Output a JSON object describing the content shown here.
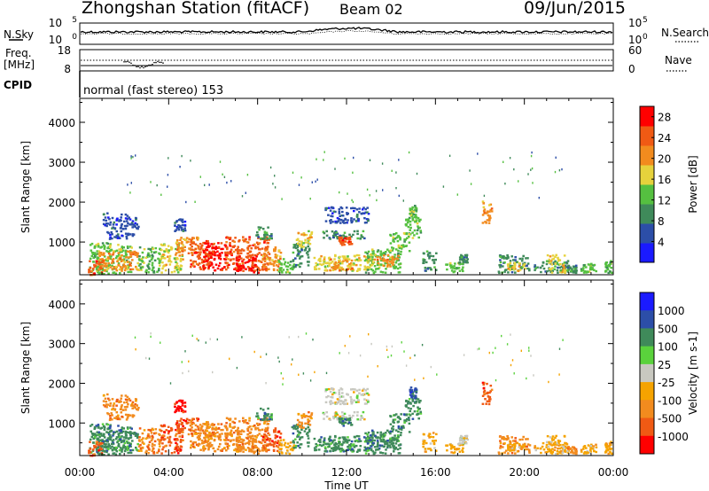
{
  "header": {
    "title": "Zhongshan Station (fitACF)",
    "beam": "Beam 02",
    "date": "09/Jun/2015"
  },
  "summary_panels": {
    "nsky_label": "N.Sky",
    "nsky_top": "10^5",
    "nsky_bottom": "10^0",
    "nsearch_label": "N.Search",
    "nsearch_top": "10^5",
    "nsearch_bottom": "10^0",
    "freq_label": "Freq.",
    "freq_unit": "[MHz]",
    "freq_top": "18",
    "freq_bottom": "8",
    "nave_label": "Nave",
    "nave_top": "60",
    "nave_bottom": "0",
    "cpid_label": "CPID",
    "cpid_text": "normal (fast stereo) 153"
  },
  "colors": {
    "power": [
      "#1a1aff",
      "#2c4ea8",
      "#3f8a5a",
      "#55c040",
      "#e6d23c",
      "#f28b1e",
      "#f05a14",
      "#ff0000"
    ],
    "velocity": [
      "#ff0000",
      "#f05a14",
      "#f28b1e",
      "#f5a300",
      "#c8c8c0",
      "#5ad23c",
      "#3f8a5a",
      "#2c4ea8",
      "#1a1aff"
    ]
  },
  "chart_data": [
    {
      "type": "heatmap",
      "name": "power",
      "ylabel": "Slant Range [km]",
      "xlim": [
        "00:00",
        "24:00"
      ],
      "ylim": [
        180,
        4600
      ],
      "x_ticks": [
        "00:00",
        "04:00",
        "08:00",
        "12:00",
        "16:00",
        "20:00",
        "00:00"
      ],
      "y_ticks": [
        "1000",
        "2000",
        "3000",
        "4000"
      ],
      "colorbar": {
        "label": "Power [dB]",
        "ticks": [
          "4",
          "8",
          "12",
          "16",
          "20",
          "24",
          "28"
        ],
        "range": [
          0,
          30
        ]
      }
    },
    {
      "type": "heatmap",
      "name": "velocity",
      "ylabel": "Slant Range [km]",
      "xlabel": "Time UT",
      "xlim": [
        "00:00",
        "24:00"
      ],
      "ylim": [
        180,
        4600
      ],
      "x_ticks": [
        "00:00",
        "04:00",
        "08:00",
        "12:00",
        "16:00",
        "20:00",
        "00:00"
      ],
      "y_ticks": [
        "1000",
        "2000",
        "3000",
        "4000"
      ],
      "colorbar": {
        "label": "Velocity [m s-1]",
        "ticks": [
          "1000",
          "500",
          "100",
          "25",
          "-25",
          "-100",
          "-500",
          "-1000"
        ]
      }
    }
  ]
}
